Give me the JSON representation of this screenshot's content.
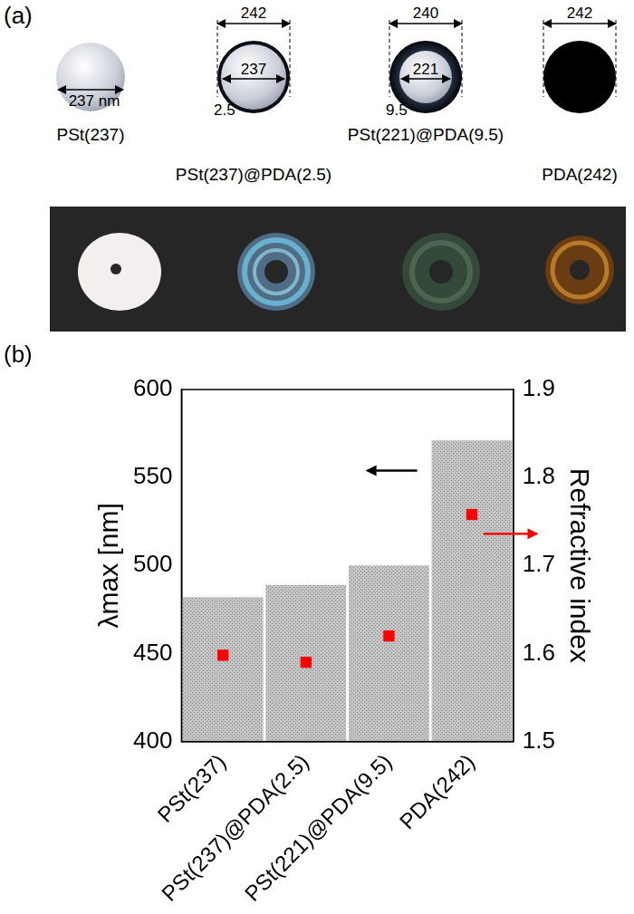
{
  "panel_labels": [
    "(a)",
    "(b)"
  ],
  "panel_a": {
    "particles": [
      {
        "name": "PSt(237)",
        "core": "237 nm"
      },
      {
        "name": "PSt(237)@PDA(2.5)",
        "outer": "242",
        "core": "237",
        "shell": "2.5"
      },
      {
        "name": "PSt(221)@PDA(9.5)",
        "outer": "240",
        "core": "221",
        "shell": "9.5"
      },
      {
        "name": "PDA(242)",
        "outer": "242"
      }
    ]
  },
  "chart_data": {
    "type": "bar",
    "categories": [
      "PSt(237)",
      "PSt(237)@PDA(2.5)",
      "PSt(221)@PDA(9.5)",
      "PDA(242)"
    ],
    "series": [
      {
        "type": "bar",
        "color": "#c4c4c4",
        "values": [
          482,
          489,
          500,
          571
        ]
      },
      {
        "type": "scatter",
        "color": "#ff0000",
        "marker": "square",
        "axis": "y2",
        "values": [
          1.598,
          1.59,
          1.62,
          1.758
        ]
      }
    ],
    "ylabel": "λmax [nm]",
    "y2label": "Refractive index",
    "ylim": [
      400,
      600
    ],
    "yticks": [
      400,
      450,
      500,
      550,
      600
    ],
    "y2lim": [
      1.5,
      1.9
    ],
    "y2ticks": [
      1.5,
      1.6,
      1.7,
      1.8,
      1.9
    ],
    "grid": false
  }
}
